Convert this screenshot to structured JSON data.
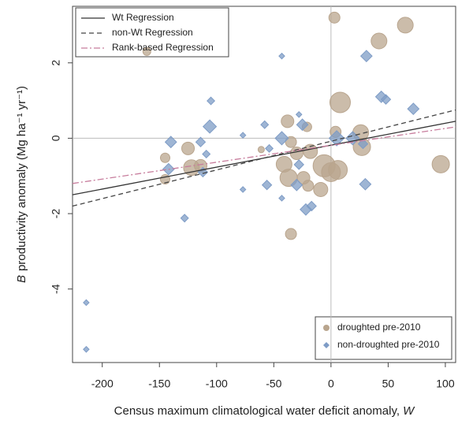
{
  "chart_data": {
    "type": "scatter",
    "xlabel": "Census maximum climatological water deficit anomaly, ",
    "xlabel_var": "W",
    "ylabel_var": "B",
    "ylabel": "productivity anomaly (Mg ha⁻¹ yr⁻¹)",
    "xlim": [
      -226,
      109
    ],
    "ylim": [
      -5.95,
      3.5
    ],
    "xticks": [
      -200,
      -150,
      -100,
      -50,
      0,
      50,
      100
    ],
    "yticks": [
      -4,
      -2,
      0,
      2
    ],
    "reference_lines": {
      "x": 0,
      "y": 0
    },
    "series": [
      {
        "name": "droughted pre-2010",
        "color": "#b9a58e",
        "shape": "circle",
        "x": [
          3,
          65,
          42,
          -161,
          8,
          -38,
          4,
          26,
          -21,
          -125,
          -145,
          -122,
          -114,
          -35,
          -30,
          -18,
          -41,
          -37,
          -24,
          -6,
          0,
          6,
          -9,
          -20,
          27,
          96,
          -35,
          -145,
          -61
        ],
        "values": [
          3.2,
          3.0,
          2.58,
          2.3,
          0.95,
          0.45,
          0.17,
          0.15,
          0.3,
          -0.27,
          -0.52,
          -0.78,
          -0.73,
          -0.1,
          -0.4,
          -0.35,
          -0.69,
          -1.05,
          -1.05,
          -0.73,
          -0.9,
          -0.84,
          -1.36,
          -1.26,
          -0.23,
          -0.69,
          -2.54,
          -1.09,
          -0.3
        ],
        "sizes": [
          7,
          10,
          10,
          5,
          13,
          8,
          7,
          10,
          6,
          8,
          6,
          10,
          8,
          7,
          8,
          9,
          10,
          11,
          8,
          14,
          12,
          12,
          9,
          7,
          11,
          11,
          7,
          6,
          4
        ]
      },
      {
        "name": "non-droughted pre-2010",
        "color": "#7e9cc6",
        "shape": "diamond",
        "x": [
          -43,
          31,
          44,
          48,
          72,
          -105,
          -106,
          -28,
          -58,
          -25,
          -140,
          -114,
          -109,
          -77,
          -43,
          -54,
          5,
          19,
          28,
          -142,
          -112,
          -56,
          -30,
          -22,
          -17,
          30,
          -43,
          -128,
          -77,
          -214,
          -214,
          -28
        ],
        "values": [
          2.18,
          2.18,
          1.1,
          1.03,
          0.78,
          0.99,
          0.31,
          0.63,
          0.36,
          0.36,
          -0.1,
          -0.1,
          -0.42,
          0.08,
          0,
          -0.27,
          0,
          0,
          -0.15,
          -0.82,
          -0.9,
          -1.24,
          -1.24,
          -1.89,
          -1.8,
          -1.22,
          -1.59,
          -2.12,
          -1.36,
          -4.36,
          -5.6,
          -0.7
        ],
        "sizes": [
          3,
          6,
          6,
          5,
          6,
          4,
          7,
          3,
          4,
          6,
          6,
          5,
          4,
          3,
          7,
          4,
          8,
          7,
          5,
          6,
          5,
          5,
          6,
          6,
          5,
          6,
          3,
          4,
          3,
          3,
          3,
          5
        ]
      }
    ],
    "lines": [
      {
        "name": "Wt Regression",
        "color": "#333333",
        "dash": "none",
        "x": [
          -226,
          109
        ],
        "values": [
          -1.5,
          0.45
        ]
      },
      {
        "name": "non-Wt Regression",
        "color": "#444444",
        "dash": "6 4",
        "x": [
          -226,
          109
        ],
        "values": [
          -1.8,
          0.75
        ]
      },
      {
        "name": "Rank-based Regression",
        "color": "#c77c9c",
        "dash": "8 3 2 3",
        "x": [
          -226,
          109
        ],
        "values": [
          -1.2,
          0.3
        ]
      }
    ]
  }
}
